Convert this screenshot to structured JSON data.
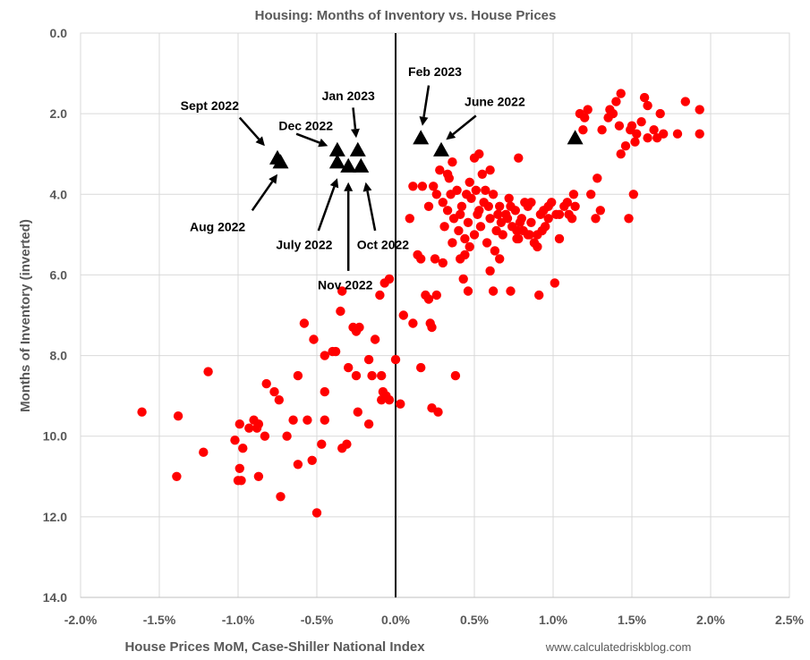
{
  "chart_data": {
    "type": "scatter",
    "title": "Housing: Months of Inventory vs. House Prices",
    "xlabel": "House Prices MoM, Case-Shiller National Index",
    "ylabel": "Months of Inventory (inverted)",
    "source": "www.calculatedriskblog.com",
    "xlim": [
      -0.02,
      0.025
    ],
    "ylim": [
      0,
      14
    ],
    "y_inverted": true,
    "grid": true,
    "x_ticks": [
      "-2.0%",
      "-1.5%",
      "-1.0%",
      "-0.5%",
      "0.0%",
      "0.5%",
      "1.0%",
      "1.5%",
      "2.0%",
      "2.5%"
    ],
    "y_ticks": [
      "0.0",
      "2.0",
      "4.0",
      "6.0",
      "8.0",
      "10.0",
      "12.0",
      "14.0"
    ],
    "colors": {
      "history": "#ff0000",
      "recent": "#000000",
      "grid": "#d9d9d9",
      "zero_line": "#000000"
    },
    "highlight_points": [
      {
        "x": -0.0075,
        "y": 3.1
      },
      {
        "x": -0.0073,
        "y": 3.2
      },
      {
        "x": -0.0037,
        "y": 2.9
      },
      {
        "x": -0.0037,
        "y": 3.2
      },
      {
        "x": -0.003,
        "y": 3.3
      },
      {
        "x": -0.0024,
        "y": 2.9
      },
      {
        "x": -0.0022,
        "y": 3.3
      },
      {
        "x": 0.0016,
        "y": 2.6
      },
      {
        "x": 0.0029,
        "y": 2.9
      },
      {
        "x": 0.0114,
        "y": 2.6
      }
    ],
    "annotations": [
      {
        "text": "Sept 2022",
        "tx": -0.0118,
        "ty": 1.8,
        "ax": -0.0099,
        "ay": 2.1,
        "bx": -0.0083,
        "by": 2.8
      },
      {
        "text": "Dec 2022",
        "tx": -0.0057,
        "ty": 2.3,
        "ax": -0.0063,
        "ay": 2.5,
        "bx": -0.0043,
        "by": 2.8
      },
      {
        "text": "Jan 2023",
        "tx": -0.003,
        "ty": 1.55,
        "ax": -0.0027,
        "ay": 1.85,
        "bx": -0.0025,
        "by": 2.6
      },
      {
        "text": "Feb 2023",
        "tx": 0.0025,
        "ty": 0.95,
        "ax": 0.0021,
        "ay": 1.3,
        "bx": 0.0017,
        "by": 2.3
      },
      {
        "text": "June 2022",
        "tx": 0.0063,
        "ty": 1.7,
        "ax": 0.0051,
        "ay": 2.05,
        "bx": 0.0032,
        "by": 2.65
      },
      {
        "text": "Aug 2022",
        "tx": -0.0113,
        "ty": 4.8,
        "ax": -0.0091,
        "ay": 4.4,
        "bx": -0.0075,
        "by": 3.5
      },
      {
        "text": "July 2022",
        "tx": -0.0058,
        "ty": 5.25,
        "ax": -0.0049,
        "ay": 4.9,
        "bx": -0.0037,
        "by": 3.6
      },
      {
        "text": "Oct 2022",
        "tx": -0.0008,
        "ty": 5.25,
        "ax": -0.0013,
        "ay": 4.9,
        "bx": -0.0019,
        "by": 3.7
      },
      {
        "text": "Nov 2022",
        "tx": -0.0032,
        "ty": 6.25,
        "ax": -0.003,
        "ay": 5.9,
        "bx": -0.003,
        "by": 3.7
      }
    ],
    "history_points": [
      {
        "x": -0.0161,
        "y": 9.4
      },
      {
        "x": -0.0138,
        "y": 9.5
      },
      {
        "x": -0.0139,
        "y": 11.0
      },
      {
        "x": -0.0119,
        "y": 8.4
      },
      {
        "x": -0.0122,
        "y": 10.4
      },
      {
        "x": -0.0102,
        "y": 10.1
      },
      {
        "x": -0.0099,
        "y": 9.7
      },
      {
        "x": -0.0098,
        "y": 11.1
      },
      {
        "x": -0.01,
        "y": 11.1
      },
      {
        "x": -0.0099,
        "y": 10.8
      },
      {
        "x": -0.0097,
        "y": 10.3
      },
      {
        "x": -0.0093,
        "y": 9.8
      },
      {
        "x": -0.009,
        "y": 9.6
      },
      {
        "x": -0.0088,
        "y": 9.8
      },
      {
        "x": -0.0087,
        "y": 11.0
      },
      {
        "x": -0.0087,
        "y": 9.7
      },
      {
        "x": -0.0083,
        "y": 10.0
      },
      {
        "x": -0.0082,
        "y": 8.7
      },
      {
        "x": -0.0077,
        "y": 8.9
      },
      {
        "x": -0.0074,
        "y": 9.1
      },
      {
        "x": -0.0073,
        "y": 11.5
      },
      {
        "x": -0.0069,
        "y": 10.0
      },
      {
        "x": -0.0065,
        "y": 9.6
      },
      {
        "x": -0.0062,
        "y": 10.7
      },
      {
        "x": -0.0062,
        "y": 8.5
      },
      {
        "x": -0.0058,
        "y": 7.2
      },
      {
        "x": -0.0056,
        "y": 9.6
      },
      {
        "x": -0.0053,
        "y": 10.6
      },
      {
        "x": -0.0052,
        "y": 7.6
      },
      {
        "x": -0.005,
        "y": 11.9
      },
      {
        "x": -0.0047,
        "y": 10.2
      },
      {
        "x": -0.0045,
        "y": 9.6
      },
      {
        "x": -0.0045,
        "y": 8.9
      },
      {
        "x": -0.0045,
        "y": 8.0
      },
      {
        "x": -0.004,
        "y": 7.9
      },
      {
        "x": -0.0038,
        "y": 7.9
      },
      {
        "x": -0.0035,
        "y": 6.9
      },
      {
        "x": -0.0034,
        "y": 6.4
      },
      {
        "x": -0.0034,
        "y": 10.3
      },
      {
        "x": -0.0031,
        "y": 10.2
      },
      {
        "x": -0.003,
        "y": 8.3
      },
      {
        "x": -0.0027,
        "y": 7.3
      },
      {
        "x": -0.0025,
        "y": 7.4
      },
      {
        "x": -0.0024,
        "y": 9.4
      },
      {
        "x": -0.0025,
        "y": 8.5
      },
      {
        "x": -0.0023,
        "y": 7.3
      },
      {
        "x": -0.0017,
        "y": 9.7
      },
      {
        "x": -0.0017,
        "y": 8.1
      },
      {
        "x": -0.0013,
        "y": 7.6
      },
      {
        "x": -0.001,
        "y": 6.5
      },
      {
        "x": -0.0009,
        "y": 9.1
      },
      {
        "x": -0.0008,
        "y": 8.9
      },
      {
        "x": -0.0006,
        "y": 9.0
      },
      {
        "x": -0.0007,
        "y": 6.2
      },
      {
        "x": -0.0004,
        "y": 6.1
      },
      {
        "x": -0.0004,
        "y": 9.1
      },
      {
        "x": -0.0009,
        "y": 8.5
      },
      {
        "x": -0.0015,
        "y": 8.5
      },
      {
        "x": 0.0,
        "y": 8.1
      },
      {
        "x": 0.0003,
        "y": 9.2
      },
      {
        "x": 0.0005,
        "y": 7.0
      },
      {
        "x": 0.0011,
        "y": 7.2
      },
      {
        "x": 0.0009,
        "y": 4.6
      },
      {
        "x": 0.0011,
        "y": 3.8
      },
      {
        "x": 0.0014,
        "y": 5.5
      },
      {
        "x": 0.0016,
        "y": 5.6
      },
      {
        "x": 0.0016,
        "y": 8.3
      },
      {
        "x": 0.0017,
        "y": 3.8
      },
      {
        "x": 0.0019,
        "y": 6.5
      },
      {
        "x": 0.0021,
        "y": 6.6
      },
      {
        "x": 0.0022,
        "y": 7.2
      },
      {
        "x": 0.0023,
        "y": 9.3
      },
      {
        "x": 0.0023,
        "y": 7.3
      },
      {
        "x": 0.0027,
        "y": 9.4
      },
      {
        "x": 0.0026,
        "y": 6.5
      },
      {
        "x": 0.0025,
        "y": 5.6
      },
      {
        "x": 0.003,
        "y": 5.7
      },
      {
        "x": 0.0021,
        "y": 4.3
      },
      {
        "x": 0.0028,
        "y": 3.4
      },
      {
        "x": 0.0033,
        "y": 3.5
      },
      {
        "x": 0.0036,
        "y": 3.2
      },
      {
        "x": 0.0038,
        "y": 8.5
      },
      {
        "x": 0.0041,
        "y": 5.6
      },
      {
        "x": 0.0043,
        "y": 6.1
      },
      {
        "x": 0.0044,
        "y": 5.5
      },
      {
        "x": 0.0046,
        "y": 6.4
      },
      {
        "x": 0.0047,
        "y": 3.7
      },
      {
        "x": 0.005,
        "y": 3.1
      },
      {
        "x": 0.0053,
        "y": 3.0
      },
      {
        "x": 0.0055,
        "y": 3.5
      },
      {
        "x": 0.006,
        "y": 3.4
      },
      {
        "x": 0.0062,
        "y": 6.4
      },
      {
        "x": 0.006,
        "y": 5.9
      },
      {
        "x": 0.0066,
        "y": 5.6
      },
      {
        "x": 0.0073,
        "y": 6.4
      },
      {
        "x": 0.0078,
        "y": 3.1
      },
      {
        "x": 0.0077,
        "y": 5.1
      },
      {
        "x": 0.0081,
        "y": 4.9
      },
      {
        "x": 0.0084,
        "y": 5.0
      },
      {
        "x": 0.0086,
        "y": 4.2
      },
      {
        "x": 0.0091,
        "y": 6.5
      },
      {
        "x": 0.009,
        "y": 5.0
      },
      {
        "x": 0.0094,
        "y": 4.4
      },
      {
        "x": 0.0097,
        "y": 4.3
      },
      {
        "x": 0.0101,
        "y": 6.2
      },
      {
        "x": 0.0104,
        "y": 5.1
      },
      {
        "x": 0.0107,
        "y": 4.3
      },
      {
        "x": 0.011,
        "y": 4.5
      },
      {
        "x": 0.0113,
        "y": 4.0
      },
      {
        "x": 0.0114,
        "y": 4.3
      },
      {
        "x": 0.0117,
        "y": 2.0
      },
      {
        "x": 0.0119,
        "y": 2.4
      },
      {
        "x": 0.012,
        "y": 2.1
      },
      {
        "x": 0.0122,
        "y": 1.9
      },
      {
        "x": 0.0124,
        "y": 4.0
      },
      {
        "x": 0.0127,
        "y": 4.6
      },
      {
        "x": 0.013,
        "y": 4.4
      },
      {
        "x": 0.0131,
        "y": 2.4
      },
      {
        "x": 0.0135,
        "y": 2.1
      },
      {
        "x": 0.0136,
        "y": 1.9
      },
      {
        "x": 0.0138,
        "y": 2.0
      },
      {
        "x": 0.014,
        "y": 1.7
      },
      {
        "x": 0.0142,
        "y": 2.3
      },
      {
        "x": 0.0143,
        "y": 1.5
      },
      {
        "x": 0.0143,
        "y": 3.0
      },
      {
        "x": 0.0146,
        "y": 2.8
      },
      {
        "x": 0.0148,
        "y": 4.6
      },
      {
        "x": 0.0149,
        "y": 2.4
      },
      {
        "x": 0.015,
        "y": 2.3
      },
      {
        "x": 0.0151,
        "y": 4.0
      },
      {
        "x": 0.0153,
        "y": 2.5
      },
      {
        "x": 0.0156,
        "y": 2.2
      },
      {
        "x": 0.0158,
        "y": 1.6
      },
      {
        "x": 0.016,
        "y": 2.6
      },
      {
        "x": 0.0164,
        "y": 2.4
      },
      {
        "x": 0.0166,
        "y": 2.6
      },
      {
        "x": 0.017,
        "y": 2.5
      },
      {
        "x": 0.0179,
        "y": 2.5
      },
      {
        "x": 0.0184,
        "y": 1.7
      },
      {
        "x": 0.0193,
        "y": 1.9
      },
      {
        "x": 0.0193,
        "y": 2.5
      },
      {
        "x": 0.0168,
        "y": 2.0
      },
      {
        "x": 0.016,
        "y": 1.8
      },
      {
        "x": 0.0152,
        "y": 2.7
      },
      {
        "x": 0.0128,
        "y": 3.6
      },
      {
        "x": 0.0024,
        "y": 3.8
      },
      {
        "x": 0.0026,
        "y": 4.0
      },
      {
        "x": 0.003,
        "y": 4.2
      },
      {
        "x": 0.0033,
        "y": 4.4
      },
      {
        "x": 0.0035,
        "y": 4.0
      },
      {
        "x": 0.0037,
        "y": 4.6
      },
      {
        "x": 0.004,
        "y": 4.9
      },
      {
        "x": 0.0042,
        "y": 4.3
      },
      {
        "x": 0.0044,
        "y": 5.1
      },
      {
        "x": 0.0046,
        "y": 4.7
      },
      {
        "x": 0.0048,
        "y": 4.1
      },
      {
        "x": 0.005,
        "y": 5.0
      },
      {
        "x": 0.0052,
        "y": 4.5
      },
      {
        "x": 0.0054,
        "y": 4.8
      },
      {
        "x": 0.0056,
        "y": 4.2
      },
      {
        "x": 0.0058,
        "y": 5.2
      },
      {
        "x": 0.006,
        "y": 4.6
      },
      {
        "x": 0.0062,
        "y": 4.0
      },
      {
        "x": 0.0064,
        "y": 4.9
      },
      {
        "x": 0.0066,
        "y": 4.3
      },
      {
        "x": 0.0068,
        "y": 5.0
      },
      {
        "x": 0.007,
        "y": 4.5
      },
      {
        "x": 0.0072,
        "y": 4.1
      },
      {
        "x": 0.0074,
        "y": 4.8
      },
      {
        "x": 0.0076,
        "y": 4.4
      },
      {
        "x": 0.0078,
        "y": 5.1
      },
      {
        "x": 0.008,
        "y": 4.6
      },
      {
        "x": 0.0082,
        "y": 4.2
      },
      {
        "x": 0.0086,
        "y": 4.7
      },
      {
        "x": 0.0088,
        "y": 5.2
      },
      {
        "x": 0.0092,
        "y": 4.5
      },
      {
        "x": 0.0095,
        "y": 4.8
      },
      {
        "x": 0.0099,
        "y": 4.2
      },
      {
        "x": 0.0102,
        "y": 4.5
      },
      {
        "x": 0.0109,
        "y": 4.2
      },
      {
        "x": 0.0031,
        "y": 4.8
      },
      {
        "x": 0.0036,
        "y": 5.2
      },
      {
        "x": 0.0041,
        "y": 4.5
      },
      {
        "x": 0.0047,
        "y": 5.3
      },
      {
        "x": 0.0053,
        "y": 4.4
      },
      {
        "x": 0.0057,
        "y": 3.9
      },
      {
        "x": 0.0063,
        "y": 5.4
      },
      {
        "x": 0.0067,
        "y": 4.7
      },
      {
        "x": 0.0073,
        "y": 4.3
      },
      {
        "x": 0.0079,
        "y": 4.7
      },
      {
        "x": 0.0084,
        "y": 4.3
      },
      {
        "x": 0.009,
        "y": 5.3
      },
      {
        "x": 0.0097,
        "y": 4.6
      },
      {
        "x": 0.0104,
        "y": 4.5
      },
      {
        "x": 0.0112,
        "y": 4.6
      },
      {
        "x": 0.0034,
        "y": 3.6
      },
      {
        "x": 0.0039,
        "y": 3.9
      },
      {
        "x": 0.0045,
        "y": 4.0
      },
      {
        "x": 0.0051,
        "y": 3.9
      },
      {
        "x": 0.0059,
        "y": 4.3
      },
      {
        "x": 0.0065,
        "y": 4.5
      },
      {
        "x": 0.0071,
        "y": 4.6
      },
      {
        "x": 0.0077,
        "y": 4.9
      },
      {
        "x": 0.0085,
        "y": 5.0
      },
      {
        "x": 0.0093,
        "y": 4.9
      }
    ]
  }
}
